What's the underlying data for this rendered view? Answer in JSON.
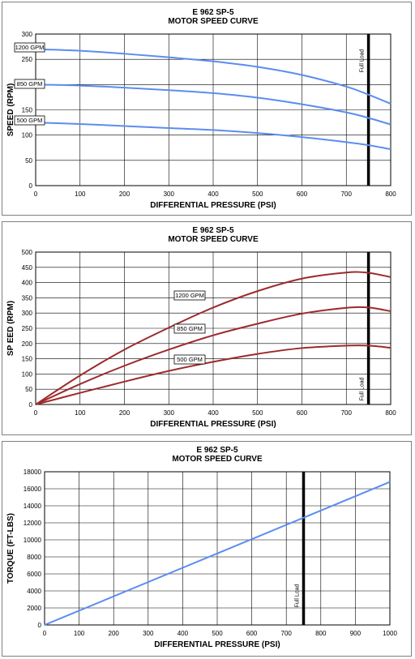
{
  "chart_data": [
    {
      "type": "line",
      "title": "E 962 SP-5",
      "subtitle": "MOTOR SPEED CURVE",
      "xlabel": "DIFFERENTIAL PRESSURE (PSI)",
      "ylabel": "SPEED (RPM)",
      "xlim": [
        0,
        800
      ],
      "ylim": [
        0,
        300
      ],
      "xticks": [
        0,
        100,
        200,
        300,
        400,
        500,
        600,
        700,
        800
      ],
      "yticks": [
        0,
        50,
        100,
        150,
        200,
        250,
        300
      ],
      "grid": true,
      "line_color": "#5b8def",
      "reference_line": {
        "x": 750,
        "label": "Full Load"
      },
      "series": [
        {
          "name": "1200 GPM",
          "x": [
            0,
            100,
            200,
            300,
            400,
            500,
            600,
            700,
            750,
            800
          ],
          "y": [
            270,
            267,
            261,
            254,
            246,
            235,
            219,
            196,
            180,
            162
          ]
        },
        {
          "name": "850 GPM",
          "x": [
            0,
            100,
            200,
            300,
            400,
            500,
            600,
            700,
            750,
            800
          ],
          "y": [
            200,
            198,
            194,
            189,
            183,
            174,
            161,
            145,
            134,
            121
          ]
        },
        {
          "name": "500 GPM",
          "x": [
            0,
            100,
            200,
            300,
            400,
            500,
            600,
            700,
            750,
            800
          ],
          "y": [
            125,
            122,
            118,
            114,
            110,
            104,
            96,
            86,
            80,
            72
          ]
        }
      ]
    },
    {
      "type": "line",
      "title": "E 962 SP-5",
      "subtitle": "MOTOR SPEED CURVE",
      "xlabel": "DIFFERENTIAL PRESSURE (PSI)",
      "ylabel": "SP EED (RPM)",
      "xlim": [
        0,
        800
      ],
      "ylim": [
        0,
        500
      ],
      "xticks": [
        0,
        100,
        200,
        300,
        400,
        500,
        600,
        700,
        800
      ],
      "yticks": [
        0,
        50,
        100,
        150,
        200,
        250,
        300,
        350,
        400,
        450,
        500
      ],
      "grid": true,
      "line_color": "#9e2a2b",
      "reference_line": {
        "x": 750,
        "label": "Full Load"
      },
      "series": [
        {
          "name": "1200 GPM",
          "x": [
            0,
            100,
            200,
            300,
            400,
            500,
            600,
            700,
            750,
            800
          ],
          "y": [
            0,
            95,
            180,
            252,
            318,
            372,
            413,
            433,
            432,
            418
          ]
        },
        {
          "name": "850 GPM",
          "x": [
            0,
            100,
            200,
            300,
            400,
            500,
            600,
            700,
            750,
            800
          ],
          "y": [
            0,
            67,
            127,
            180,
            227,
            265,
            298,
            317,
            318,
            306
          ]
        },
        {
          "name": "500 GPM",
          "x": [
            0,
            100,
            200,
            300,
            400,
            500,
            600,
            700,
            750,
            800
          ],
          "y": [
            0,
            38,
            75,
            110,
            140,
            166,
            185,
            193,
            193,
            186
          ]
        }
      ]
    },
    {
      "type": "line",
      "title": "E 962 SP-5",
      "subtitle": "MOTOR SPEED CURVE",
      "xlabel": "DIFFERENTIAL PRESSURE (PSI)",
      "ylabel": "TORQUE (FT-LBS)",
      "xlim": [
        0,
        1000
      ],
      "ylim": [
        0,
        18000
      ],
      "xticks": [
        0,
        100,
        200,
        300,
        400,
        500,
        600,
        700,
        800,
        900,
        1000
      ],
      "yticks": [
        0,
        2000,
        4000,
        6000,
        8000,
        10000,
        12000,
        14000,
        16000,
        18000
      ],
      "grid": true,
      "line_color": "#5b8def",
      "reference_line": {
        "x": 750,
        "label": "Full Load"
      },
      "series": [
        {
          "name": "",
          "x": [
            0,
            1000
          ],
          "y": [
            0,
            16800
          ]
        }
      ]
    }
  ]
}
